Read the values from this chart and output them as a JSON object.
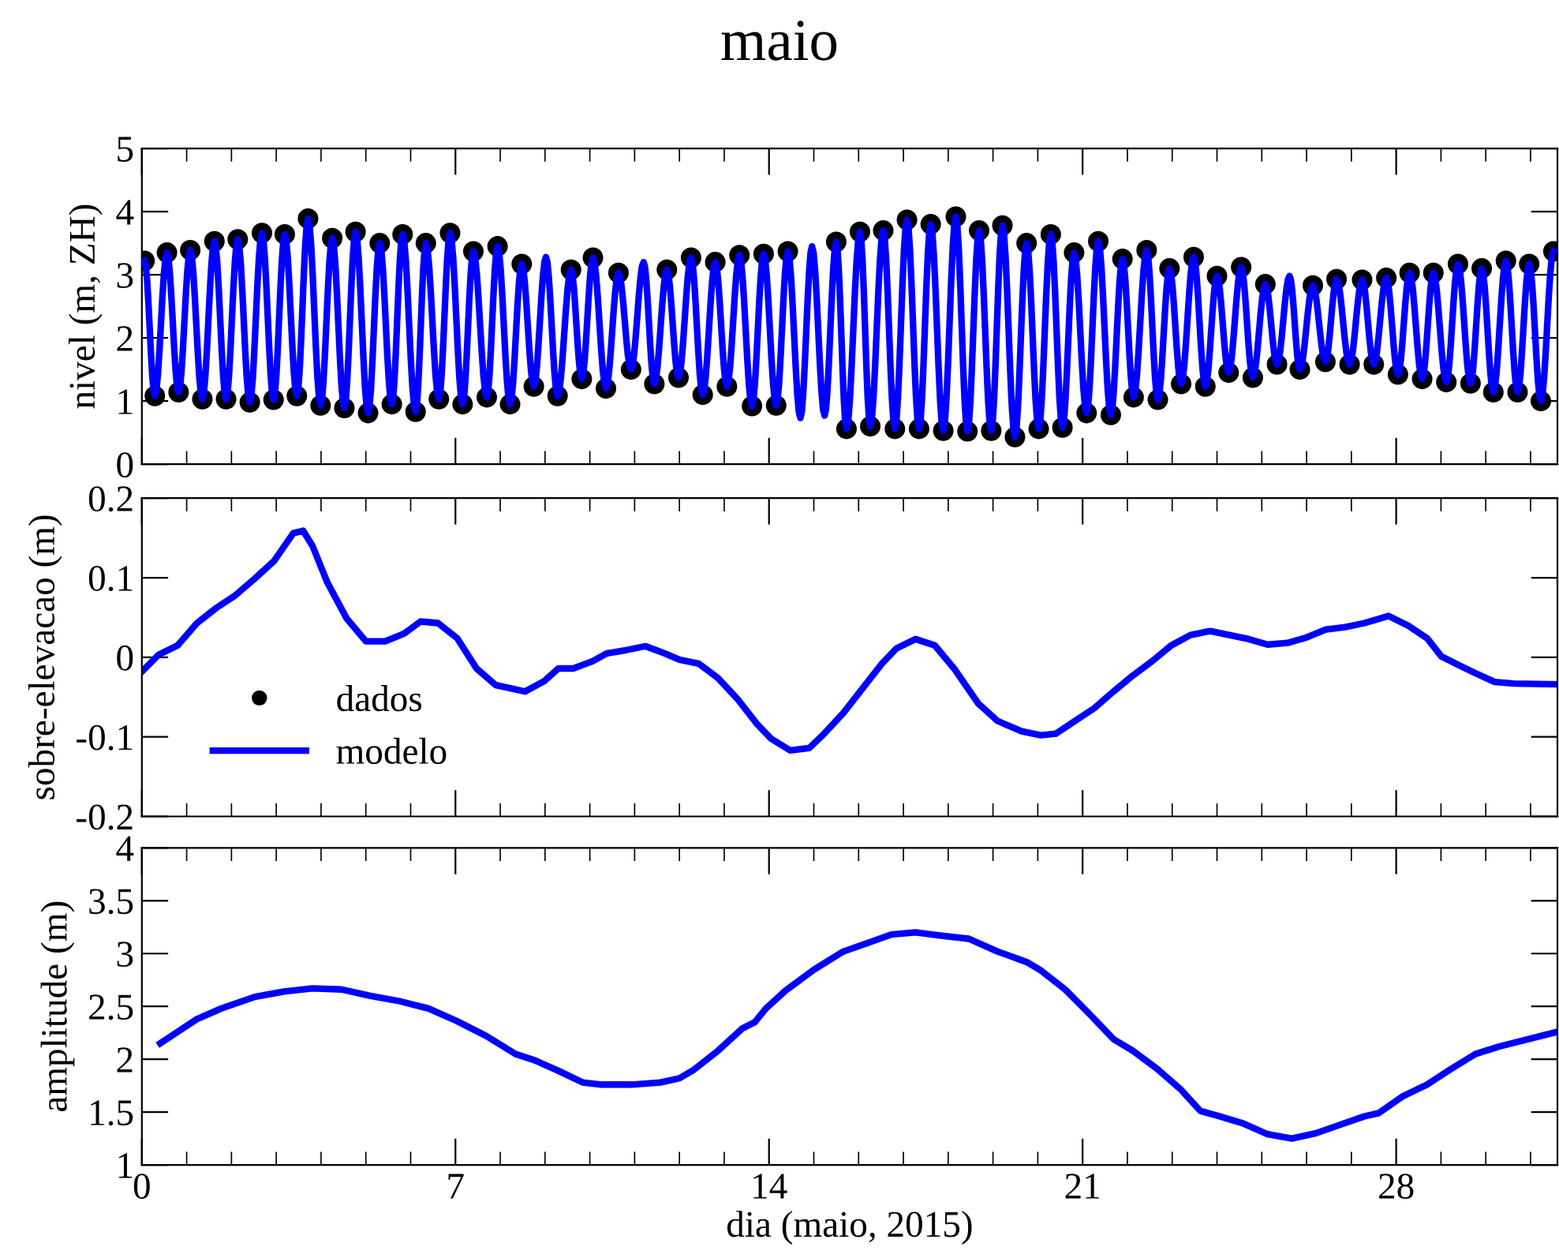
{
  "chart_data": [
    {
      "type": "line",
      "title": "maio",
      "ylabel": "nivel (m, ZH)",
      "xlim": [
        0,
        31.6
      ],
      "xticks": [
        0,
        {
          "value": 1,
          "label": null
        },
        {
          "value": 2,
          "label": null
        },
        {
          "value": 3,
          "label": null
        },
        {
          "value": 4,
          "label": null
        },
        {
          "value": 5,
          "label": null
        },
        {
          "value": 6,
          "label": null
        },
        7,
        {
          "value": 8,
          "label": null
        },
        {
          "value": 9,
          "label": null
        },
        {
          "value": 10,
          "label": null
        },
        {
          "value": 11,
          "label": null
        },
        {
          "value": 12,
          "label": null
        },
        {
          "value": 13,
          "label": null
        },
        14,
        {
          "value": 15,
          "label": null
        },
        {
          "value": 16,
          "label": null
        },
        {
          "value": 17,
          "label": null
        },
        {
          "value": 18,
          "label": null
        },
        {
          "value": 19,
          "label": null
        },
        {
          "value": 20,
          "label": null
        },
        21,
        {
          "value": 22,
          "label": null
        },
        {
          "value": 23,
          "label": null
        },
        {
          "value": 24,
          "label": null
        },
        {
          "value": 25,
          "label": null
        },
        {
          "value": 26,
          "label": null
        },
        {
          "value": 27,
          "label": null
        },
        28,
        {
          "value": 29,
          "label": null
        },
        {
          "value": 30,
          "label": null
        },
        {
          "value": 31,
          "label": null
        }
      ],
      "ylim": [
        0,
        5
      ],
      "yticks": [
        0,
        1,
        2,
        3,
        4,
        5
      ],
      "tick_labels": "y",
      "grid": false,
      "legend": "bottom left",
      "x": [
        0.06,
        0.29,
        0.56,
        0.82,
        1.08,
        1.35,
        1.62,
        1.88,
        2.14,
        2.41,
        2.68,
        2.94,
        3.19,
        3.46,
        3.71,
        3.99,
        4.25,
        4.52,
        4.77,
        5.05,
        5.31,
        5.58,
        5.82,
        6.11,
        6.34,
        6.63,
        6.88,
        7.16,
        7.4,
        7.7,
        7.94,
        8.22,
        8.48,
        8.75,
        9.02,
        9.28,
        9.58,
        9.82,
        10.07,
        10.36,
        10.64,
        10.92,
        11.2,
        11.44,
        11.72,
        11.98,
        12.26,
        12.52,
        12.8,
        13.06,
        13.34,
        13.62,
        13.88,
        14.16,
        14.42,
        14.7,
        14.96,
        15.24,
        15.5,
        15.73,
        16.03,
        16.26,
        16.55,
        16.81,
        17.08,
        17.35,
        17.61,
        17.89,
        18.17,
        18.43,
        18.69,
        18.96,
        19.21,
        19.49,
        19.75,
        20.02,
        20.29,
        20.55,
        20.81,
        21.09,
        21.35,
        21.63,
        21.89,
        22.14,
        22.43,
        22.68,
        22.94,
        23.2,
        23.48,
        23.74,
        24.0,
        24.26,
        24.54,
        24.8,
        25.08,
        25.34,
        25.62,
        25.85,
        26.14,
        26.42,
        26.67,
        26.96,
        27.24,
        27.5,
        27.78,
        28.04,
        28.3,
        28.58,
        28.83,
        29.12,
        29.38,
        29.66,
        29.91,
        30.17,
        30.45,
        30.71,
        30.97,
        31.23,
        31.51
      ],
      "series": [
        {
          "name": "dados",
          "type": "scatter",
          "marker": "circle",
          "color": "#000000",
          "values": [
            3.22,
            1.08,
            3.35,
            1.14,
            3.39,
            1.03,
            3.53,
            1.03,
            3.56,
            0.98,
            3.66,
            1.02,
            3.64,
            1.08,
            3.89,
            0.93,
            3.58,
            0.89,
            3.68,
            0.81,
            3.5,
            0.95,
            3.64,
            0.83,
            3.5,
            1.03,
            3.66,
            0.95,
            3.37,
            1.06,
            3.45,
            0.95,
            3.17,
            1.23,
            null,
            1.08,
            3.08,
            1.35,
            3.27,
            1.2,
            3.03,
            1.5,
            null,
            1.27,
            3.08,
            1.37,
            3.27,
            1.1,
            3.2,
            1.23,
            3.31,
            0.92,
            3.33,
            0.93,
            3.37,
            null,
            null,
            null,
            3.52,
            0.56,
            3.68,
            0.6,
            3.7,
            0.56,
            3.87,
            0.56,
            3.8,
            0.53,
            3.92,
            0.52,
            3.7,
            0.53,
            3.78,
            0.43,
            3.5,
            0.56,
            3.64,
            0.58,
            3.35,
            0.81,
            3.53,
            0.78,
            3.25,
            1.06,
            3.39,
            1.02,
            3.1,
            1.27,
            3.28,
            1.23,
            2.98,
            1.45,
            3.12,
            1.37,
            2.85,
            1.58,
            null,
            1.5,
            2.83,
            1.62,
            2.93,
            1.58,
            2.92,
            1.58,
            2.95,
            1.42,
            3.03,
            1.35,
            3.03,
            1.3,
            3.17,
            1.28,
            3.1,
            1.14,
            3.22,
            1.14,
            3.17,
            1.0,
            3.37
          ]
        },
        {
          "name": "modelo",
          "color": "#0000ff",
          "values": [
            3.22,
            1.08,
            3.35,
            1.14,
            3.39,
            1.03,
            3.53,
            1.03,
            3.56,
            0.98,
            3.66,
            1.02,
            3.64,
            1.08,
            3.89,
            0.93,
            3.58,
            0.89,
            3.68,
            0.81,
            3.5,
            0.95,
            3.64,
            0.83,
            3.5,
            1.03,
            3.66,
            0.95,
            3.37,
            1.06,
            3.45,
            0.95,
            3.17,
            1.23,
            3.28,
            1.08,
            3.08,
            1.35,
            3.27,
            1.2,
            3.03,
            1.5,
            3.2,
            1.27,
            3.08,
            1.37,
            3.27,
            1.1,
            3.2,
            1.23,
            3.31,
            0.92,
            3.33,
            0.93,
            3.37,
            0.73,
            3.45,
            0.77,
            3.52,
            0.56,
            3.68,
            0.6,
            3.7,
            0.56,
            3.87,
            0.56,
            3.8,
            0.53,
            3.92,
            0.52,
            3.7,
            0.53,
            3.78,
            0.43,
            3.5,
            0.56,
            3.64,
            0.58,
            3.35,
            0.81,
            3.53,
            0.78,
            3.25,
            1.06,
            3.39,
            1.02,
            3.1,
            1.27,
            3.28,
            1.23,
            2.98,
            1.45,
            3.12,
            1.37,
            2.85,
            1.58,
            2.98,
            1.5,
            2.83,
            1.62,
            2.93,
            1.58,
            2.92,
            1.58,
            2.95,
            1.42,
            3.03,
            1.35,
            3.03,
            1.3,
            3.17,
            1.28,
            3.1,
            1.14,
            3.22,
            1.14,
            3.17,
            1.0,
            3.37
          ]
        }
      ]
    },
    {
      "type": "line",
      "ylabel": "sobre-elevacao (m)",
      "xlim": [
        0,
        31.6
      ],
      "xticks": [
        0,
        {
          "value": 1,
          "label": null
        },
        {
          "value": 2,
          "label": null
        },
        {
          "value": 3,
          "label": null
        },
        {
          "value": 4,
          "label": null
        },
        {
          "value": 5,
          "label": null
        },
        {
          "value": 6,
          "label": null
        },
        7,
        {
          "value": 8,
          "label": null
        },
        {
          "value": 9,
          "label": null
        },
        {
          "value": 10,
          "label": null
        },
        {
          "value": 11,
          "label": null
        },
        {
          "value": 12,
          "label": null
        },
        {
          "value": 13,
          "label": null
        },
        14,
        {
          "value": 15,
          "label": null
        },
        {
          "value": 16,
          "label": null
        },
        {
          "value": 17,
          "label": null
        },
        {
          "value": 18,
          "label": null
        },
        {
          "value": 19,
          "label": null
        },
        {
          "value": 20,
          "label": null
        },
        21,
        {
          "value": 22,
          "label": null
        },
        {
          "value": 23,
          "label": null
        },
        {
          "value": 24,
          "label": null
        },
        {
          "value": 25,
          "label": null
        },
        {
          "value": 26,
          "label": null
        },
        {
          "value": 27,
          "label": null
        },
        28,
        {
          "value": 29,
          "label": null
        },
        {
          "value": 30,
          "label": null
        },
        {
          "value": 31,
          "label": null
        }
      ],
      "ylim": [
        -0.2,
        0.2
      ],
      "yticks": [
        -0.2,
        -0.1,
        0,
        0.1,
        0.2
      ],
      "tick_labels": "y",
      "grid": false,
      "legend": false,
      "x": [
        0.0,
        0.37,
        0.8,
        1.23,
        1.66,
        2.09,
        2.52,
        2.95,
        3.38,
        3.6,
        3.81,
        4.14,
        4.57,
        5.0,
        5.43,
        5.86,
        6.22,
        6.61,
        7.04,
        7.47,
        7.9,
        8.23,
        8.55,
        8.98,
        9.3,
        9.63,
        10.06,
        10.38,
        10.81,
        11.24,
        11.67,
        12.0,
        12.43,
        12.86,
        13.29,
        13.72,
        14.04,
        14.47,
        14.9,
        15.23,
        15.66,
        16.09,
        16.52,
        16.84,
        17.27,
        17.7,
        18.13,
        18.67,
        19.1,
        19.64,
        20.07,
        20.4,
        20.83,
        21.26,
        21.69,
        22.12,
        22.55,
        22.98,
        23.41,
        23.85,
        24.27,
        24.7,
        25.13,
        25.57,
        26.0,
        26.43,
        26.86,
        27.29,
        27.83,
        28.26,
        28.69,
        29.01,
        29.44,
        29.77,
        30.2,
        30.63,
        31.6
      ],
      "series": [
        {
          "color": "#0000ff",
          "values": [
            -0.018,
            0.003,
            0.015,
            0.043,
            0.062,
            0.078,
            0.099,
            0.121,
            0.156,
            0.159,
            0.14,
            0.094,
            0.049,
            0.02,
            0.02,
            0.03,
            0.045,
            0.043,
            0.024,
            -0.014,
            -0.035,
            -0.039,
            -0.043,
            -0.03,
            -0.014,
            -0.014,
            -0.005,
            0.005,
            0.009,
            0.014,
            0.005,
            -0.003,
            -0.008,
            -0.026,
            -0.052,
            -0.083,
            -0.102,
            -0.117,
            -0.114,
            -0.096,
            -0.07,
            -0.039,
            -0.008,
            0.011,
            0.023,
            0.015,
            -0.014,
            -0.058,
            -0.08,
            -0.093,
            -0.098,
            -0.096,
            -0.08,
            -0.064,
            -0.043,
            -0.023,
            -0.005,
            0.015,
            0.028,
            0.033,
            0.028,
            0.023,
            0.016,
            0.018,
            0.025,
            0.035,
            0.038,
            0.043,
            0.052,
            0.04,
            0.024,
            0.001,
            -0.011,
            -0.02,
            -0.031,
            -0.033,
            -0.034
          ]
        }
      ]
    },
    {
      "type": "line",
      "xlabel": "dia (maio, 2015)",
      "ylabel": "amplitude (m)",
      "xlim": [
        0,
        31.6
      ],
      "xticks": [
        0,
        {
          "value": 1,
          "label": null
        },
        {
          "value": 2,
          "label": null
        },
        {
          "value": 3,
          "label": null
        },
        {
          "value": 4,
          "label": null
        },
        {
          "value": 5,
          "label": null
        },
        {
          "value": 6,
          "label": null
        },
        7,
        {
          "value": 8,
          "label": null
        },
        {
          "value": 9,
          "label": null
        },
        {
          "value": 10,
          "label": null
        },
        {
          "value": 11,
          "label": null
        },
        {
          "value": 12,
          "label": null
        },
        {
          "value": 13,
          "label": null
        },
        14,
        {
          "value": 15,
          "label": null
        },
        {
          "value": 16,
          "label": null
        },
        {
          "value": 17,
          "label": null
        },
        {
          "value": 18,
          "label": null
        },
        {
          "value": 19,
          "label": null
        },
        {
          "value": 20,
          "label": null
        },
        21,
        {
          "value": 22,
          "label": null
        },
        {
          "value": 23,
          "label": null
        },
        {
          "value": 24,
          "label": null
        },
        {
          "value": 25,
          "label": null
        },
        {
          "value": 26,
          "label": null
        },
        {
          "value": 27,
          "label": null
        },
        28,
        {
          "value": 29,
          "label": null
        },
        {
          "value": 30,
          "label": null
        },
        {
          "value": 31,
          "label": null
        }
      ],
      "ylim": [
        1,
        4
      ],
      "yticks": [
        1,
        1.5,
        2,
        2.5,
        3,
        3.5,
        4
      ],
      "grid": false,
      "legend": false,
      "x": [
        0.41,
        1.23,
        1.77,
        2.52,
        3.17,
        3.81,
        4.46,
        5.1,
        5.75,
        6.4,
        7.04,
        7.69,
        8.34,
        8.77,
        9.3,
        9.84,
        10.27,
        10.92,
        11.57,
        12.0,
        12.32,
        12.86,
        13.4,
        13.68,
        13.93,
        14.37,
        15.01,
        15.66,
        16.2,
        16.73,
        17.27,
        17.81,
        18.46,
        19.1,
        19.75,
        20.07,
        20.61,
        21.15,
        21.69,
        22.12,
        22.66,
        23.2,
        23.63,
        24.06,
        24.6,
        25.13,
        25.67,
        26.21,
        26.75,
        27.29,
        27.61,
        28.15,
        28.69,
        29.23,
        29.77,
        30.3,
        31.6
      ],
      "series": [
        {
          "color": "#0000ff",
          "values": [
            2.15,
            2.38,
            2.48,
            2.59,
            2.64,
            2.67,
            2.66,
            2.6,
            2.55,
            2.48,
            2.36,
            2.22,
            2.05,
            1.99,
            1.89,
            1.78,
            1.76,
            1.76,
            1.78,
            1.82,
            1.9,
            2.08,
            2.29,
            2.35,
            2.48,
            2.65,
            2.85,
            3.02,
            3.1,
            3.18,
            3.2,
            3.17,
            3.14,
            3.02,
            2.92,
            2.84,
            2.66,
            2.43,
            2.19,
            2.08,
            1.91,
            1.71,
            1.51,
            1.46,
            1.39,
            1.29,
            1.25,
            1.3,
            1.38,
            1.46,
            1.49,
            1.65,
            1.76,
            1.91,
            2.05,
            2.12,
            2.26
          ]
        }
      ]
    }
  ]
}
